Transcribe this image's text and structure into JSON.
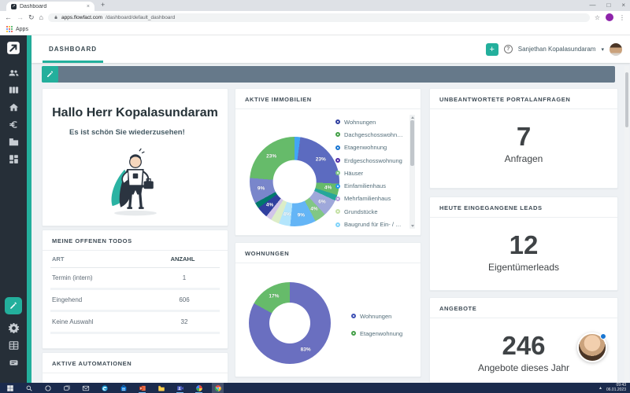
{
  "browser": {
    "tab_title": "Dashboard",
    "new_tab_glyph": "+",
    "close_glyph": "×",
    "nav": {
      "back": "←",
      "forward": "→",
      "reload": "↻",
      "home": "⌂"
    },
    "url_domain": "apps.flowfact.com",
    "url_path": "/dashboard/default_dashboard",
    "bookmarks_label": "Apps",
    "star_glyph": "☆",
    "menu_glyph": "⋮",
    "window": {
      "minimize": "—",
      "maximize": "□",
      "close": "×"
    }
  },
  "app_header": {
    "tab_label": "DASHBOARD",
    "add_glyph": "+",
    "help_glyph": "?",
    "user_name": "Sanjethan Kopalasundaram",
    "chevron_glyph": "▾"
  },
  "sidebar": {
    "top": [
      {
        "id": "logo",
        "icon": "flowfact-logo"
      },
      {
        "id": "contacts",
        "icon": "people"
      },
      {
        "id": "pipeline",
        "icon": "columns"
      },
      {
        "id": "properties",
        "icon": "home"
      },
      {
        "id": "finance",
        "icon": "euro"
      },
      {
        "id": "company",
        "icon": "building"
      },
      {
        "id": "dashboard",
        "icon": "dashboard-grid"
      }
    ],
    "bottom": [
      {
        "id": "edit",
        "icon": "pencil",
        "active": true
      },
      {
        "id": "settings",
        "icon": "gear"
      },
      {
        "id": "tables",
        "icon": "table-grid"
      },
      {
        "id": "news",
        "icon": "list-badge"
      }
    ]
  },
  "cards": {
    "greeting": {
      "title": "Hallo Herr Kopalasundaram",
      "subtitle": "Es ist schön Sie wiederzusehen!"
    },
    "todos": {
      "title": "MEINE OFFENEN TODOS",
      "columns": [
        "ART",
        "ANZAHL"
      ],
      "rows": [
        {
          "art": "Termin (intern)",
          "anzahl": "1"
        },
        {
          "art": "Eingehend",
          "anzahl": "606"
        },
        {
          "art": "Keine Auswahl",
          "anzahl": "32"
        }
      ]
    },
    "automationen": {
      "title": "AKTIVE AUTOMATIONEN"
    },
    "stats": [
      {
        "title": "UNBEANTWORTETE PORTALANFRAGEN",
        "value": "7",
        "label": "Anfragen"
      },
      {
        "title": "HEUTE EINGEGANGENE LEADS",
        "value": "12",
        "label": "Eigentümerleads"
      },
      {
        "title": "ANGEBOTE",
        "value": "246",
        "label": "Angebote dieses Jahr"
      }
    ]
  },
  "chart_data": [
    {
      "type": "pie",
      "donut": true,
      "title": "AKTIVE IMMOBILIEN",
      "values": [
        2,
        23,
        4,
        2,
        6,
        4,
        9,
        4,
        3,
        2,
        4,
        2,
        9,
        23
      ],
      "colors": [
        "#42a5f5",
        "#5c6bc0",
        "#66bb6a",
        "#26a69a",
        "#9fa8da",
        "#81c784",
        "#64b5f6",
        "#b3e5fc",
        "#dcedc8",
        "#d1c4e9",
        "#303f9f",
        "#00796b",
        "#7986cb",
        "#66bb6a"
      ],
      "label_min_pct": 4,
      "legend_position": "right",
      "legend_labels": [
        "Wohnungen",
        "Dachgeschosswohnung",
        "Etagenwohnung",
        "Erdgeschosswohnung",
        "Häuser",
        "Einfamilienhaus",
        "Mehrfamilienhaus",
        "Grundstücke",
        "Baugrund für Ein- / Zweifa…"
      ],
      "legend_colors": [
        "#303f9f",
        "#43a047",
        "#1976d2",
        "#512da8",
        "#81c784",
        "#2196f3",
        "#b39ddb",
        "#c5e1a5",
        "#81d4fa"
      ]
    },
    {
      "type": "pie",
      "donut": true,
      "title": "WOHNUNGEN",
      "categories": [
        "Wohnungen",
        "Etagenwohnung"
      ],
      "values": [
        83,
        17
      ],
      "colors": [
        "#6a6fc0",
        "#66bb6a"
      ],
      "label_min_pct": 4,
      "legend_position": "right",
      "legend_colors": [
        "#3f51b5",
        "#43a047"
      ]
    }
  ],
  "taskbar": {
    "time": "09:43",
    "date": "06.01.2023",
    "tray_glyph": "▴",
    "icons": [
      {
        "id": "start"
      },
      {
        "id": "search"
      },
      {
        "id": "cortana"
      },
      {
        "id": "task-view"
      },
      {
        "id": "mail"
      },
      {
        "id": "edge"
      },
      {
        "id": "store"
      },
      {
        "id": "powerpoint",
        "open": true
      },
      {
        "id": "explorer"
      },
      {
        "id": "teams",
        "open": true
      },
      {
        "id": "photos",
        "open": true
      },
      {
        "id": "chrome",
        "active": true
      }
    ]
  },
  "colors": {
    "accent_teal": "#23af9c",
    "banner": "#66798a",
    "sidebar": "#262f38",
    "taskbar": "#1b2b4d"
  }
}
